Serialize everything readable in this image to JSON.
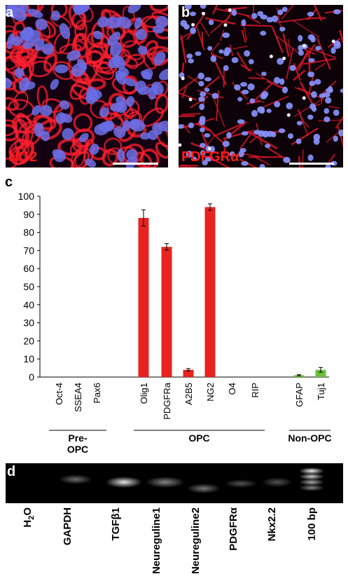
{
  "panels": {
    "a": {
      "letter": "a",
      "stain_label": "NG2"
    },
    "b": {
      "letter": "b",
      "stain_label": "PDFGRα"
    },
    "c": {
      "letter": "c"
    },
    "d": {
      "letter": "d"
    }
  },
  "colors": {
    "opc": "#e8231f",
    "non_opc": "#6bbf3a",
    "nuclei": "#6a6fe6",
    "membrane": "#ff2030"
  },
  "chart_data": {
    "type": "bar",
    "categories": [
      "Oct-4",
      "SSEA4",
      "Pax6",
      "Olig1",
      "PDGFRa",
      "A2B5",
      "NG2",
      "O4",
      "RIP",
      "GFAP",
      "Tuj1"
    ],
    "values": [
      0,
      0,
      0,
      88,
      72,
      4,
      94,
      0,
      0,
      1,
      4
    ],
    "errors": [
      0,
      0,
      0,
      4.5,
      1.8,
      0.7,
      1.8,
      0,
      0,
      0.3,
      1.3
    ],
    "bar_colors": [
      "#e8231f",
      "#e8231f",
      "#e8231f",
      "#e8231f",
      "#e8231f",
      "#e8231f",
      "#e8231f",
      "#e8231f",
      "#e8231f",
      "#6bbf3a",
      "#6bbf3a"
    ],
    "ylim": [
      0,
      100
    ],
    "yticks": [
      0,
      10,
      20,
      30,
      40,
      50,
      60,
      70,
      80,
      90,
      100
    ],
    "groups": [
      {
        "name_lines": [
          "Pre-",
          "OPC"
        ],
        "first": 0,
        "last": 2
      },
      {
        "name_lines": [
          "OPC"
        ],
        "first": 3,
        "last": 8
      },
      {
        "name_lines": [
          "Non-OPC"
        ],
        "first": 9,
        "last": 10
      }
    ],
    "title": "",
    "xlabel": "",
    "ylabel": ""
  },
  "gel": {
    "lanes": [
      "H₂O",
      "GAPDH",
      "TGFβ1",
      "Neureguline1",
      "Neureguline2",
      "PDGFRα",
      "Nkx2.2",
      "100 bp"
    ],
    "lane_labels_shown": [
      "H2O",
      "GAPDH",
      "TGFβ1",
      "Neureguline1",
      "Neureguline2",
      "PDGFRα",
      "Nkx2.2",
      "100 bp"
    ]
  }
}
